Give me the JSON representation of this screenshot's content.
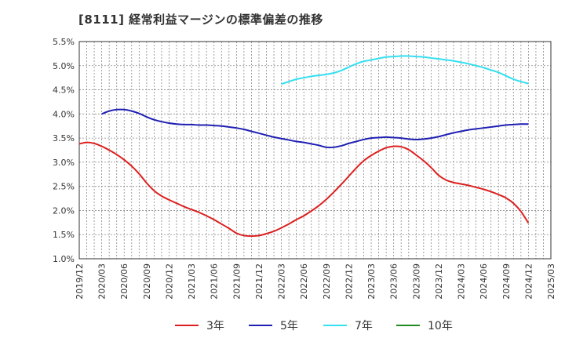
{
  "title": "[8111]  経常利益マージンの標準偏差の推移",
  "chart_data": {
    "type": "line",
    "title": "[8111]  経常利益マージンの標準偏差の推移",
    "xlabel": "",
    "ylabel": "",
    "ylim": [
      1.0,
      5.5
    ],
    "yticks": [
      "1.0%",
      "1.5%",
      "2.0%",
      "2.5%",
      "3.0%",
      "3.5%",
      "4.0%",
      "4.5%",
      "5.0%",
      "5.5%"
    ],
    "xticks": [
      "2019/12",
      "2020/03",
      "2020/06",
      "2020/09",
      "2020/12",
      "2021/03",
      "2021/06",
      "2021/09",
      "2021/12",
      "2022/03",
      "2022/06",
      "2022/09",
      "2022/12",
      "2023/03",
      "2023/06",
      "2023/09",
      "2023/12",
      "2024/03",
      "2024/06",
      "2024/09",
      "2024/12",
      "2025/03"
    ],
    "grid": true,
    "legend_position": "bottom",
    "series": [
      {
        "name": "3年",
        "color": "#dd1f1f",
        "points": [
          [
            "2019/12",
            3.38
          ],
          [
            "2020/01",
            3.41
          ],
          [
            "2020/02",
            3.39
          ],
          [
            "2020/03",
            3.33
          ],
          [
            "2020/04",
            3.25
          ],
          [
            "2020/05",
            3.16
          ],
          [
            "2020/06",
            3.05
          ],
          [
            "2020/07",
            2.92
          ],
          [
            "2020/08",
            2.76
          ],
          [
            "2020/09",
            2.57
          ],
          [
            "2020/10",
            2.41
          ],
          [
            "2020/11",
            2.3
          ],
          [
            "2020/12",
            2.22
          ],
          [
            "2021/01",
            2.15
          ],
          [
            "2021/02",
            2.08
          ],
          [
            "2021/03",
            2.02
          ],
          [
            "2021/04",
            1.96
          ],
          [
            "2021/05",
            1.89
          ],
          [
            "2021/06",
            1.81
          ],
          [
            "2021/07",
            1.72
          ],
          [
            "2021/08",
            1.63
          ],
          [
            "2021/09",
            1.53
          ],
          [
            "2021/10",
            1.48
          ],
          [
            "2021/11",
            1.47
          ],
          [
            "2021/12",
            1.48
          ],
          [
            "2022/01",
            1.52
          ],
          [
            "2022/02",
            1.57
          ],
          [
            "2022/03",
            1.64
          ],
          [
            "2022/04",
            1.72
          ],
          [
            "2022/05",
            1.81
          ],
          [
            "2022/06",
            1.89
          ],
          [
            "2022/07",
            1.99
          ],
          [
            "2022/08",
            2.1
          ],
          [
            "2022/09",
            2.23
          ],
          [
            "2022/10",
            2.38
          ],
          [
            "2022/11",
            2.54
          ],
          [
            "2022/12",
            2.71
          ],
          [
            "2023/01",
            2.88
          ],
          [
            "2023/02",
            3.03
          ],
          [
            "2023/03",
            3.14
          ],
          [
            "2023/04",
            3.23
          ],
          [
            "2023/05",
            3.3
          ],
          [
            "2023/06",
            3.33
          ],
          [
            "2023/07",
            3.32
          ],
          [
            "2023/08",
            3.26
          ],
          [
            "2023/09",
            3.15
          ],
          [
            "2023/10",
            3.03
          ],
          [
            "2023/11",
            2.89
          ],
          [
            "2023/12",
            2.73
          ],
          [
            "2024/01",
            2.63
          ],
          [
            "2024/02",
            2.58
          ],
          [
            "2024/03",
            2.55
          ],
          [
            "2024/04",
            2.52
          ],
          [
            "2024/05",
            2.48
          ],
          [
            "2024/06",
            2.44
          ],
          [
            "2024/07",
            2.39
          ],
          [
            "2024/08",
            2.33
          ],
          [
            "2024/09",
            2.26
          ],
          [
            "2024/10",
            2.15
          ],
          [
            "2024/11",
            1.98
          ],
          [
            "2024/12",
            1.74
          ]
        ]
      },
      {
        "name": "5年",
        "color": "#1f1fb4",
        "points": [
          [
            "2020/03",
            4.0
          ],
          [
            "2020/04",
            4.06
          ],
          [
            "2020/05",
            4.09
          ],
          [
            "2020/06",
            4.09
          ],
          [
            "2020/07",
            4.06
          ],
          [
            "2020/08",
            4.01
          ],
          [
            "2020/09",
            3.94
          ],
          [
            "2020/10",
            3.88
          ],
          [
            "2020/11",
            3.84
          ],
          [
            "2020/12",
            3.81
          ],
          [
            "2021/01",
            3.79
          ],
          [
            "2021/02",
            3.78
          ],
          [
            "2021/03",
            3.78
          ],
          [
            "2021/04",
            3.77
          ],
          [
            "2021/05",
            3.77
          ],
          [
            "2021/06",
            3.76
          ],
          [
            "2021/07",
            3.75
          ],
          [
            "2021/08",
            3.73
          ],
          [
            "2021/09",
            3.71
          ],
          [
            "2021/10",
            3.68
          ],
          [
            "2021/11",
            3.64
          ],
          [
            "2021/12",
            3.6
          ],
          [
            "2022/01",
            3.56
          ],
          [
            "2022/02",
            3.52
          ],
          [
            "2022/03",
            3.49
          ],
          [
            "2022/04",
            3.46
          ],
          [
            "2022/05",
            3.43
          ],
          [
            "2022/06",
            3.41
          ],
          [
            "2022/07",
            3.38
          ],
          [
            "2022/08",
            3.35
          ],
          [
            "2022/09",
            3.31
          ],
          [
            "2022/10",
            3.31
          ],
          [
            "2022/11",
            3.34
          ],
          [
            "2022/12",
            3.39
          ],
          [
            "2023/01",
            3.43
          ],
          [
            "2023/02",
            3.47
          ],
          [
            "2023/03",
            3.5
          ],
          [
            "2023/04",
            3.51
          ],
          [
            "2023/05",
            3.52
          ],
          [
            "2023/06",
            3.51
          ],
          [
            "2023/07",
            3.5
          ],
          [
            "2023/08",
            3.48
          ],
          [
            "2023/09",
            3.47
          ],
          [
            "2023/10",
            3.48
          ],
          [
            "2023/11",
            3.5
          ],
          [
            "2023/12",
            3.53
          ],
          [
            "2024/01",
            3.57
          ],
          [
            "2024/02",
            3.61
          ],
          [
            "2024/03",
            3.64
          ],
          [
            "2024/04",
            3.67
          ],
          [
            "2024/05",
            3.69
          ],
          [
            "2024/06",
            3.71
          ],
          [
            "2024/07",
            3.73
          ],
          [
            "2024/08",
            3.75
          ],
          [
            "2024/09",
            3.77
          ],
          [
            "2024/10",
            3.78
          ],
          [
            "2024/11",
            3.79
          ],
          [
            "2024/12",
            3.79
          ]
        ]
      },
      {
        "name": "7年",
        "color": "#33e0f0",
        "points": [
          [
            "2022/03",
            4.62
          ],
          [
            "2022/04",
            4.67
          ],
          [
            "2022/05",
            4.72
          ],
          [
            "2022/06",
            4.75
          ],
          [
            "2022/07",
            4.78
          ],
          [
            "2022/08",
            4.8
          ],
          [
            "2022/09",
            4.82
          ],
          [
            "2022/10",
            4.85
          ],
          [
            "2022/11",
            4.9
          ],
          [
            "2022/12",
            4.97
          ],
          [
            "2023/01",
            5.04
          ],
          [
            "2023/02",
            5.09
          ],
          [
            "2023/03",
            5.12
          ],
          [
            "2023/04",
            5.15
          ],
          [
            "2023/05",
            5.18
          ],
          [
            "2023/06",
            5.19
          ],
          [
            "2023/07",
            5.2
          ],
          [
            "2023/08",
            5.2
          ],
          [
            "2023/09",
            5.19
          ],
          [
            "2023/10",
            5.18
          ],
          [
            "2023/11",
            5.16
          ],
          [
            "2023/12",
            5.14
          ],
          [
            "2024/01",
            5.12
          ],
          [
            "2024/02",
            5.1
          ],
          [
            "2024/03",
            5.07
          ],
          [
            "2024/04",
            5.04
          ],
          [
            "2024/05",
            5.0
          ],
          [
            "2024/06",
            4.96
          ],
          [
            "2024/07",
            4.91
          ],
          [
            "2024/08",
            4.86
          ],
          [
            "2024/09",
            4.79
          ],
          [
            "2024/10",
            4.72
          ],
          [
            "2024/11",
            4.67
          ],
          [
            "2024/12",
            4.63
          ]
        ]
      },
      {
        "name": "10年",
        "color": "#1f8c1f",
        "points": []
      }
    ]
  }
}
